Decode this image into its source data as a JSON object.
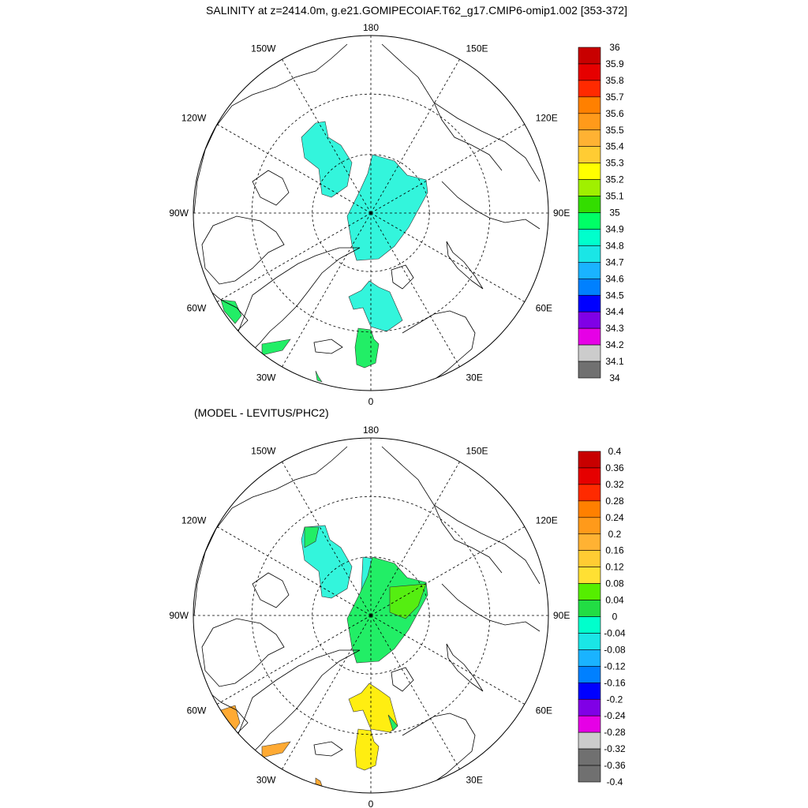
{
  "title": "SALINITY at z=2414.0m, g.e21.GOMIPECOIAF.T62_g17.CMIP6-omip1.002 [353-372]",
  "subtitle": "(MODEL - LEVITUS/PHC2)",
  "colors": {
    "cyan": "#33f5dc",
    "green": "#22ee66",
    "lime": "#55ee11",
    "yellow": "#ffee11",
    "orange": "#ffaa33",
    "coast": "#000000",
    "grid": "#000000"
  },
  "maps": [
    {
      "name": "salinity",
      "lon_labels": [
        "180",
        "150E",
        "120E",
        "90E",
        "60E",
        "30E",
        "0",
        "30W",
        "60W",
        "90W",
        "120W",
        "150W"
      ],
      "colorbar": {
        "labels": [
          "36",
          "35.9",
          "35.8",
          "35.7",
          "35.6",
          "35.5",
          "35.4",
          "35.3",
          "35.2",
          "35.1",
          "35",
          "34.9",
          "34.8",
          "34.7",
          "34.6",
          "34.5",
          "34.4",
          "34.3",
          "34.2",
          "34.1",
          "34"
        ],
        "colors": [
          "#c80000",
          "#e60000",
          "#ff2a00",
          "#ff8000",
          "#ff9a1a",
          "#ffb233",
          "#ffcc33",
          "#ffff00",
          "#a0f000",
          "#33dd00",
          "#00ff66",
          "#00ffcc",
          "#1ae6e6",
          "#1ab3ff",
          "#0080ff",
          "#0000ff",
          "#8000e6",
          "#e600e6",
          "#cccccc",
          "#707070"
        ]
      }
    },
    {
      "name": "difference",
      "lon_labels": [
        "180",
        "150E",
        "120E",
        "90E",
        "60E",
        "30E",
        "0",
        "30W",
        "60W",
        "90W",
        "120W",
        "150W"
      ],
      "colorbar": {
        "labels": [
          "0.4",
          "0.36",
          "0.32",
          "0.28",
          "0.24",
          "0.2",
          "0.16",
          "0.12",
          "0.08",
          "0.04",
          "0",
          "-0.04",
          "-0.08",
          "-0.12",
          "-0.16",
          "-0.2",
          "-0.24",
          "-0.28",
          "-0.32",
          "-0.36",
          "-0.4"
        ],
        "colors": [
          "#c80000",
          "#e60000",
          "#ff2a00",
          "#ff8000",
          "#ff9a1a",
          "#ffb233",
          "#ffcc33",
          "#ffe033",
          "#55ee00",
          "#22dd44",
          "#00ffcc",
          "#1ae6e6",
          "#1ab3ff",
          "#0080ff",
          "#0000ff",
          "#8000e6",
          "#e600e6",
          "#cccccc",
          "#707070",
          "#707070"
        ]
      }
    }
  ]
}
